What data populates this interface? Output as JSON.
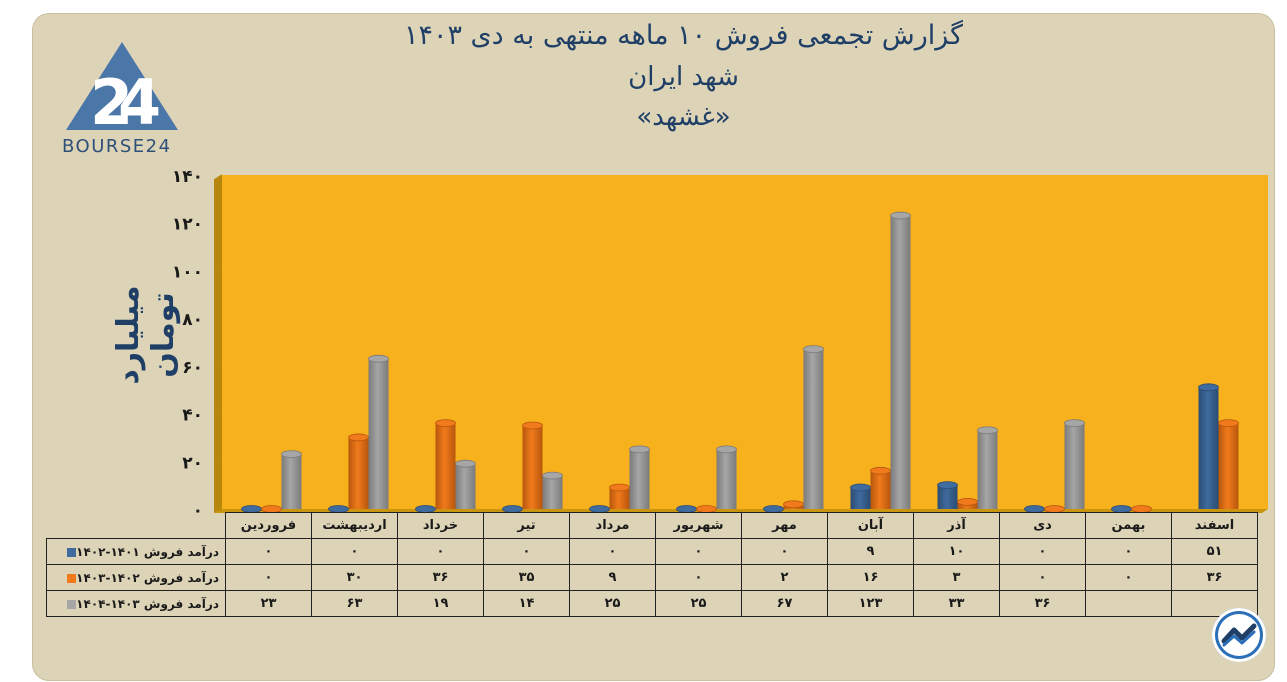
{
  "title": {
    "line1": "گزارش تجمعی فروش ۱۰ ماهه منتهی به دی ۱۴۰۳",
    "line2": "شهد ایران",
    "line3": "«غشهد»"
  },
  "logo": {
    "text": "BOURSE24"
  },
  "colors": {
    "background": "#ddd4b8",
    "plot_area": "#f7b11c",
    "series1": "#3f6b9e",
    "series2": "#f07a1c",
    "series3": "#a6a6a6",
    "title": "#1f3f66"
  },
  "chart_data": {
    "type": "bar",
    "title": "گزارش تجمعی فروش ۱۰ ماهه منتهی به دی ۱۴۰۳",
    "subtitle": "شهد ایران «غشهد»",
    "xlabel": "",
    "ylabel": "میلیارد تومان",
    "ylim": [
      0,
      140
    ],
    "yticks": [
      "۰",
      "۲۰",
      "۴۰",
      "۶۰",
      "۸۰",
      "۱۰۰",
      "۱۲۰",
      "۱۴۰"
    ],
    "ytick_values": [
      0,
      20,
      40,
      60,
      80,
      100,
      120,
      140
    ],
    "grid": true,
    "legend": "data-table",
    "categories": [
      "اسفند",
      "بهمن",
      "دی",
      "آذر",
      "آبان",
      "مهر",
      "شهریور",
      "مرداد",
      "تیر",
      "خرداد",
      "اردیبهشت",
      "فروردین"
    ],
    "series": [
      {
        "name": "درآمد فروش ۱۴۰۱-۱۴۰۲",
        "values": [
          51,
          0,
          0,
          10,
          9,
          0,
          0,
          0,
          0,
          0,
          0,
          0
        ],
        "labels": [
          "۵۱",
          "۰",
          "۰",
          "۱۰",
          "۹",
          "۰",
          "۰",
          "۰",
          "۰",
          "۰",
          "۰",
          "۰"
        ]
      },
      {
        "name": "درآمد فروش ۱۴۰۲-۱۴۰۳",
        "values": [
          36,
          0,
          0,
          3,
          16,
          2,
          0,
          9,
          35,
          36,
          30,
          0
        ],
        "labels": [
          "۳۶",
          "۰",
          "۰",
          "۳",
          "۱۶",
          "۲",
          "۰",
          "۹",
          "۳۵",
          "۳۶",
          "۳۰",
          "۰"
        ]
      },
      {
        "name": "درآمد فروش ۱۴۰۳-۱۴۰۴",
        "values": [
          null,
          null,
          36,
          33,
          123,
          67,
          25,
          25,
          14,
          19,
          63,
          23
        ],
        "labels": [
          "",
          "",
          "۳۶",
          "۳۳",
          "۱۲۳",
          "۶۷",
          "۲۵",
          "۲۵",
          "۱۴",
          "۱۹",
          "۶۳",
          "۲۳"
        ]
      }
    ]
  }
}
